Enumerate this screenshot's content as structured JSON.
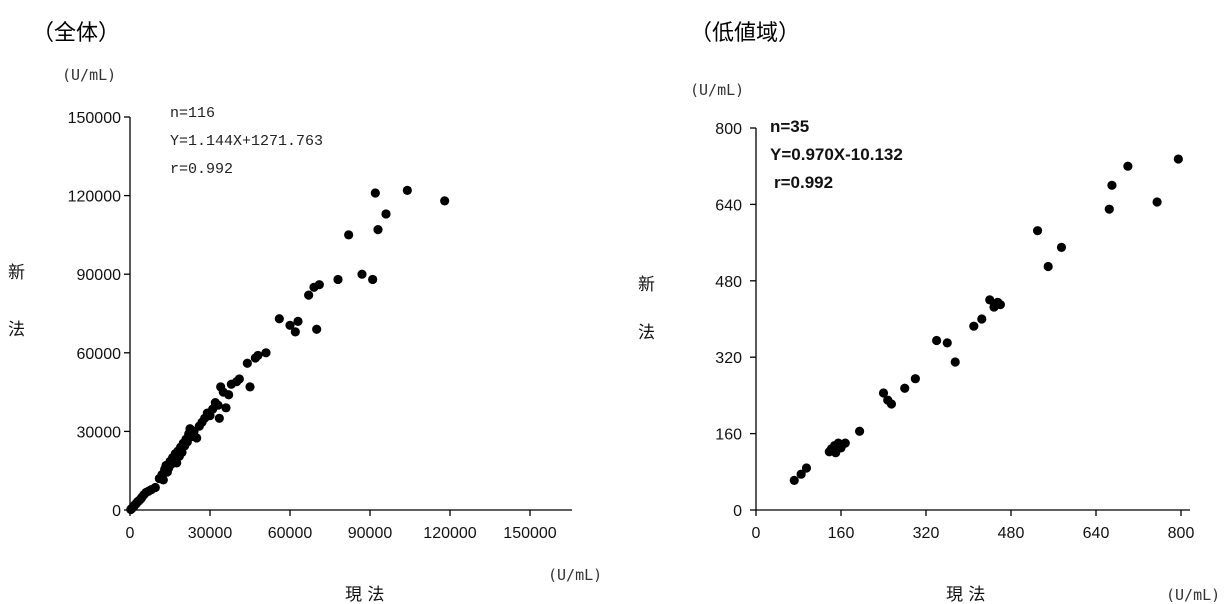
{
  "chart_data": [
    {
      "type": "scatter",
      "title": "（全体）",
      "ylabel": "新法",
      "xlabel": "現 法",
      "y_unit": "(U/mL)",
      "x_unit": "(U/mL)",
      "xlim": [
        0,
        150000
      ],
      "ylim": [
        0,
        150000
      ],
      "xticks": [
        0,
        30000,
        60000,
        90000,
        120000,
        150000
      ],
      "yticks": [
        0,
        30000,
        60000,
        90000,
        120000,
        150000
      ],
      "xtick_labels": [
        "0",
        "30000",
        "60000",
        "90000",
        "120000",
        "150000"
      ],
      "ytick_labels": [
        "0",
        "30000",
        "60000",
        "90000",
        "120000",
        "150000"
      ],
      "annotations": [
        "n=116",
        "Y=1.144X+1271.763",
        "r=0.992"
      ],
      "grid": false,
      "points": [
        [
          300,
          200
        ],
        [
          600,
          500
        ],
        [
          900,
          800
        ],
        [
          1200,
          1100
        ],
        [
          1500,
          1500
        ],
        [
          1800,
          1900
        ],
        [
          2200,
          2300
        ],
        [
          2600,
          2800
        ],
        [
          3000,
          3300
        ],
        [
          3400,
          3600
        ],
        [
          4000,
          4200
        ],
        [
          4500,
          4900
        ],
        [
          5200,
          5800
        ],
        [
          6000,
          6700
        ],
        [
          7000,
          7200
        ],
        [
          8000,
          7800
        ],
        [
          9500,
          8600
        ],
        [
          11000,
          12000
        ],
        [
          12000,
          13500
        ],
        [
          12500,
          11500
        ],
        [
          13000,
          15500
        ],
        [
          13500,
          17000
        ],
        [
          14000,
          14500
        ],
        [
          14500,
          16000
        ],
        [
          15000,
          18500
        ],
        [
          15500,
          17500
        ],
        [
          16000,
          20000
        ],
        [
          16500,
          19000
        ],
        [
          17000,
          21500
        ],
        [
          17500,
          18000
        ],
        [
          18000,
          22500
        ],
        [
          18500,
          20500
        ],
        [
          19000,
          24000
        ],
        [
          19500,
          22000
        ],
        [
          20000,
          25500
        ],
        [
          20500,
          24500
        ],
        [
          21000,
          27000
        ],
        [
          21500,
          26000
        ],
        [
          22000,
          29000
        ],
        [
          22500,
          31000
        ],
        [
          23000,
          28000
        ],
        [
          24000,
          30000
        ],
        [
          25000,
          27500
        ],
        [
          26000,
          32000
        ],
        [
          27000,
          33500
        ],
        [
          28000,
          35000
        ],
        [
          29000,
          37000
        ],
        [
          30000,
          36000
        ],
        [
          31000,
          38500
        ],
        [
          32000,
          41000
        ],
        [
          33000,
          40000
        ],
        [
          33500,
          35000
        ],
        [
          34000,
          47000
        ],
        [
          35000,
          45000
        ],
        [
          36000,
          39000
        ],
        [
          37000,
          44000
        ],
        [
          38000,
          48000
        ],
        [
          40000,
          49000
        ],
        [
          41000,
          50000
        ],
        [
          44000,
          56000
        ],
        [
          45000,
          47000
        ],
        [
          47000,
          58000
        ],
        [
          48000,
          59000
        ],
        [
          51000,
          60000
        ],
        [
          56000,
          73000
        ],
        [
          60000,
          70500
        ],
        [
          62000,
          68000
        ],
        [
          63000,
          72000
        ],
        [
          67000,
          82000
        ],
        [
          69000,
          85000
        ],
        [
          70000,
          69000
        ],
        [
          71000,
          86000
        ],
        [
          78000,
          88000
        ],
        [
          82000,
          105000
        ],
        [
          87000,
          90000
        ],
        [
          91000,
          88000
        ],
        [
          92000,
          121000
        ],
        [
          93000,
          107000
        ],
        [
          96000,
          113000
        ],
        [
          104000,
          122000
        ],
        [
          118000,
          118000
        ]
      ]
    },
    {
      "type": "scatter",
      "title": "（低値域）",
      "ylabel": "新法",
      "xlabel": "現 法",
      "y_unit": "(U/mL)",
      "x_unit": "(U/mL)",
      "xlim": [
        0,
        800
      ],
      "ylim": [
        0,
        800
      ],
      "xticks": [
        0,
        160,
        320,
        480,
        640,
        800
      ],
      "yticks": [
        0,
        160,
        320,
        480,
        640,
        800
      ],
      "xtick_labels": [
        "0",
        "160",
        "320",
        "480",
        "640",
        "800"
      ],
      "ytick_labels": [
        "0",
        "160",
        "320",
        "480",
        "640",
        "800"
      ],
      "annotations": [
        "n=35",
        "Y=0.970X-10.132",
        "r=0.992"
      ],
      "grid": false,
      "points": [
        [
          72,
          62
        ],
        [
          85,
          75
        ],
        [
          95,
          88
        ],
        [
          138,
          122
        ],
        [
          142,
          128
        ],
        [
          148,
          135
        ],
        [
          150,
          120
        ],
        [
          155,
          140
        ],
        [
          160,
          130
        ],
        [
          168,
          140
        ],
        [
          195,
          165
        ],
        [
          240,
          245
        ],
        [
          248,
          230
        ],
        [
          255,
          222
        ],
        [
          280,
          255
        ],
        [
          300,
          275
        ],
        [
          340,
          355
        ],
        [
          360,
          350
        ],
        [
          375,
          310
        ],
        [
          410,
          385
        ],
        [
          425,
          400
        ],
        [
          440,
          440
        ],
        [
          448,
          425
        ],
        [
          455,
          435
        ],
        [
          460,
          430
        ],
        [
          530,
          585
        ],
        [
          550,
          510
        ],
        [
          575,
          550
        ],
        [
          665,
          630
        ],
        [
          670,
          680
        ],
        [
          700,
          720
        ],
        [
          755,
          645
        ],
        [
          795,
          735
        ]
      ]
    }
  ]
}
